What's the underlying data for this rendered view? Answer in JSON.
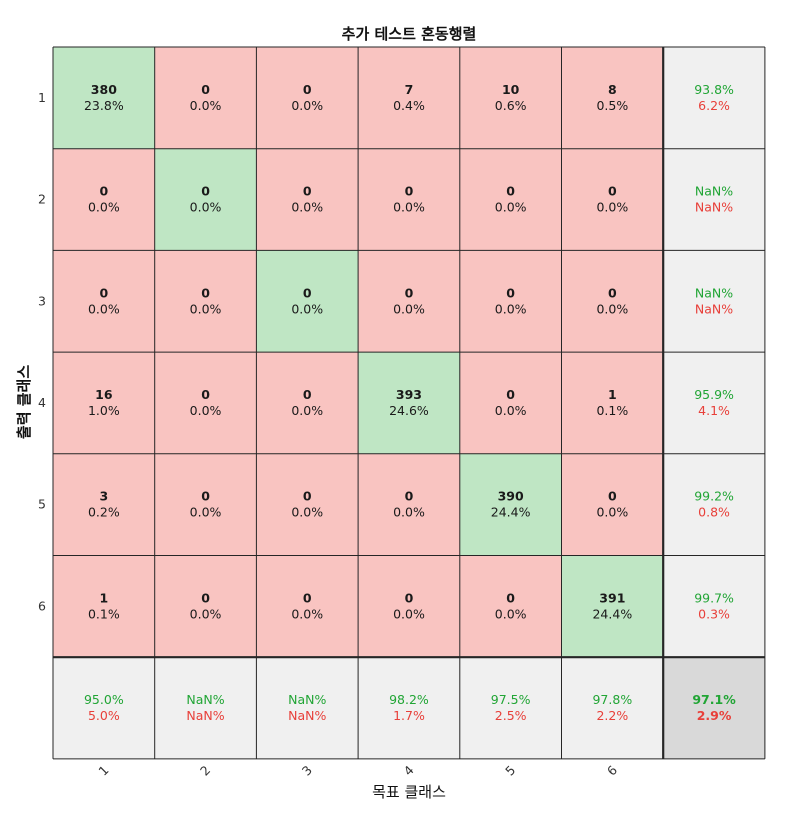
{
  "chart_data": {
    "type": "heatmap",
    "title": "추가 테스트 혼동행렬",
    "xlabel": "목표 클래스",
    "ylabel": "출력 클래스",
    "x_tick_labels": [
      "1",
      "2",
      "3",
      "4",
      "5",
      "6"
    ],
    "y_tick_labels": [
      "1",
      "2",
      "3",
      "4",
      "5",
      "6"
    ],
    "counts": [
      [
        380,
        0,
        0,
        7,
        10,
        8
      ],
      [
        0,
        0,
        0,
        0,
        0,
        0
      ],
      [
        0,
        0,
        0,
        0,
        0,
        0
      ],
      [
        16,
        0,
        0,
        393,
        0,
        1
      ],
      [
        3,
        0,
        0,
        0,
        390,
        0
      ],
      [
        1,
        0,
        0,
        0,
        0,
        391
      ]
    ],
    "percents": [
      [
        "23.8%",
        "0.0%",
        "0.0%",
        "0.4%",
        "0.6%",
        "0.5%"
      ],
      [
        "0.0%",
        "0.0%",
        "0.0%",
        "0.0%",
        "0.0%",
        "0.0%"
      ],
      [
        "0.0%",
        "0.0%",
        "0.0%",
        "0.0%",
        "0.0%",
        "0.0%"
      ],
      [
        "1.0%",
        "0.0%",
        "0.0%",
        "24.6%",
        "0.0%",
        "0.1%"
      ],
      [
        "0.2%",
        "0.0%",
        "0.0%",
        "0.0%",
        "24.4%",
        "0.0%"
      ],
      [
        "0.1%",
        "0.0%",
        "0.0%",
        "0.0%",
        "0.0%",
        "24.4%"
      ]
    ],
    "row_summary": [
      {
        "correct": "93.8%",
        "error": "6.2%"
      },
      {
        "correct": "NaN%",
        "error": "NaN%"
      },
      {
        "correct": "NaN%",
        "error": "NaN%"
      },
      {
        "correct": "95.9%",
        "error": "4.1%"
      },
      {
        "correct": "99.2%",
        "error": "0.8%"
      },
      {
        "correct": "99.7%",
        "error": "0.3%"
      }
    ],
    "col_summary": [
      {
        "correct": "95.0%",
        "error": "5.0%"
      },
      {
        "correct": "NaN%",
        "error": "NaN%"
      },
      {
        "correct": "NaN%",
        "error": "NaN%"
      },
      {
        "correct": "98.2%",
        "error": "1.7%"
      },
      {
        "correct": "97.5%",
        "error": "2.5%"
      },
      {
        "correct": "97.8%",
        "error": "2.2%"
      }
    ],
    "overall": {
      "correct": "97.1%",
      "error": "2.9%"
    },
    "colors": {
      "diagonal": "#bfe6c4",
      "off_diagonal": "#f9c4c1",
      "summary": "#f0f0f0",
      "overall": "#d9d9d9",
      "correct_text": "#21a535",
      "error_text": "#e8403a",
      "cell_text": "#1a1a1a",
      "grid": "#262626"
    }
  }
}
